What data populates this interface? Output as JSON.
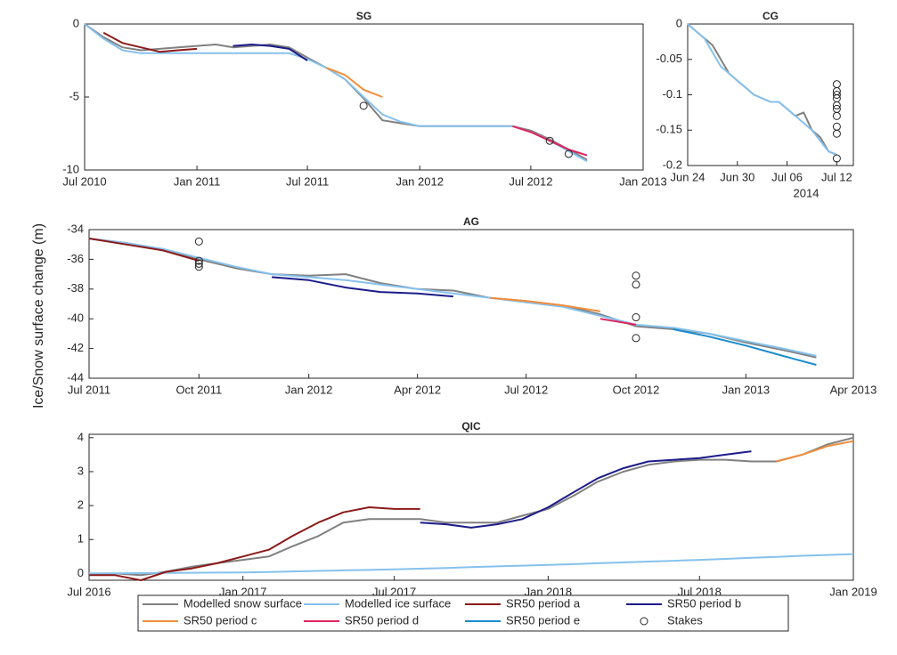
{
  "y_label": "Ice/Snow surface change (m)",
  "chart_data": [
    {
      "type": "line",
      "title": "SG",
      "x": [
        "2010-07",
        "2010-08",
        "2010-09",
        "2010-10",
        "2010-11",
        "2010-12",
        "2011-01",
        "2011-02",
        "2011-03",
        "2011-04",
        "2011-05",
        "2011-06",
        "2011-07",
        "2011-08",
        "2011-09",
        "2011-10",
        "2011-11",
        "2011-12",
        "2012-01",
        "2012-02",
        "2012-03",
        "2012-04",
        "2012-05",
        "2012-06",
        "2012-07",
        "2012-08",
        "2012-09",
        "2012-10",
        "2012-11",
        "2012-12",
        "2013-01"
      ],
      "xlim": [
        "2010-07",
        "2013-01"
      ],
      "xticks": [
        {
          "value": "2010-07",
          "label": "Jul 2010"
        },
        {
          "value": "2011-01",
          "label": "Jan 2011"
        },
        {
          "value": "2011-07",
          "label": "Jul 2011"
        },
        {
          "value": "2012-01",
          "label": "Jan 2012"
        },
        {
          "value": "2012-07",
          "label": "Jul 2012"
        },
        {
          "value": "2013-01",
          "label": "Jan 2013"
        }
      ],
      "ylim": [
        -10,
        0
      ],
      "yticks": [
        -10,
        -5,
        0
      ],
      "series": [
        {
          "name": "Modelled snow surface",
          "color": "#808080",
          "values": [
            0,
            -0.9,
            -1.6,
            -1.8,
            -1.7,
            -1.6,
            -1.5,
            -1.4,
            -1.6,
            -1.5,
            -1.4,
            -1.6,
            -2.3,
            -3.0,
            -3.8,
            -5.1,
            -6.6,
            -6.8,
            -7,
            -7,
            -7,
            -7,
            -7,
            -7,
            -7.3,
            -7.9,
            -8.6,
            -9.3,
            null,
            null,
            null
          ]
        },
        {
          "name": "Modelled ice surface",
          "color": "#86c1ec",
          "values": [
            0,
            -1.0,
            -1.8,
            -2,
            -2,
            -2,
            -2,
            -2,
            -2,
            -2,
            -2,
            -2,
            -2.4,
            -3.0,
            -3.8,
            -5.0,
            -6.2,
            -6.7,
            -7,
            -7,
            -7,
            -7,
            -7,
            -7,
            -7.4,
            -8.0,
            -8.7,
            -9.4,
            null,
            null,
            null
          ]
        },
        {
          "name": "SR50 period a",
          "color": "#8b1a1a",
          "values": [
            null,
            -0.6,
            -1.3,
            -1.6,
            -1.9,
            -1.8,
            -1.7,
            null,
            null,
            null,
            null,
            null,
            null,
            null,
            null,
            null,
            null,
            null,
            null,
            null,
            null,
            null,
            null,
            null,
            null,
            null,
            null,
            null,
            null,
            null,
            null
          ]
        },
        {
          "name": "SR50 period b",
          "color": "#1c1c8a",
          "values": [
            null,
            null,
            null,
            null,
            null,
            null,
            null,
            null,
            -1.5,
            -1.4,
            -1.5,
            -1.7,
            -2.5,
            null,
            null,
            null,
            null,
            null,
            null,
            null,
            null,
            null,
            null,
            null,
            null,
            null,
            null,
            null,
            null,
            null,
            null
          ]
        },
        {
          "name": "SR50 period c",
          "color": "#f28e3c",
          "values": [
            null,
            null,
            null,
            null,
            null,
            null,
            null,
            null,
            null,
            null,
            null,
            null,
            null,
            -3.0,
            -3.5,
            -4.5,
            -5.0,
            null,
            null,
            null,
            null,
            null,
            null,
            null,
            null,
            null,
            null,
            null,
            null,
            null,
            null
          ]
        },
        {
          "name": "SR50 period d",
          "color": "#e0245e",
          "values": [
            null,
            null,
            null,
            null,
            null,
            null,
            null,
            null,
            null,
            null,
            null,
            null,
            null,
            null,
            null,
            null,
            null,
            null,
            null,
            null,
            null,
            null,
            null,
            -7.0,
            -7.4,
            -8.0,
            -8.6,
            -9.0,
            null,
            null,
            null
          ]
        },
        {
          "name": "Stakes",
          "color": "#262626",
          "x": [
            "2011-10",
            "2012-08",
            "2012-09"
          ],
          "values": [
            -5.6,
            -8.0,
            -8.9
          ]
        }
      ]
    },
    {
      "type": "line",
      "title": "CG",
      "x_label": "2014",
      "x": [
        "2014-06-24",
        "2014-06-25",
        "2014-06-26",
        "2014-06-27",
        "2014-06-28",
        "2014-06-29",
        "2014-06-30",
        "2014-07-01",
        "2014-07-02",
        "2014-07-03",
        "2014-07-04",
        "2014-07-05",
        "2014-07-06",
        "2014-07-07",
        "2014-07-08",
        "2014-07-09",
        "2014-07-10",
        "2014-07-11",
        "2014-07-12"
      ],
      "xlim": [
        "2014-06-24",
        "2014-07-14"
      ],
      "xticks": [
        {
          "value": "2014-06-24",
          "label": "Jun 24"
        },
        {
          "value": "2014-06-30",
          "label": "Jun 30"
        },
        {
          "value": "2014-07-06",
          "label": "Jul 06"
        },
        {
          "value": "2014-07-12",
          "label": "Jul 12"
        }
      ],
      "ylim": [
        -0.2,
        0
      ],
      "yticks": [
        -0.2,
        -0.15,
        -0.1,
        -0.05,
        0
      ],
      "series": [
        {
          "name": "Modelled snow surface",
          "color": "#808080",
          "values": [
            0,
            -0.01,
            -0.02,
            -0.03,
            -0.05,
            -0.07,
            -0.08,
            -0.09,
            -0.1,
            -0.105,
            -0.11,
            -0.11,
            -0.12,
            -0.13,
            -0.125,
            -0.15,
            -0.16,
            -0.18,
            -0.185
          ]
        },
        {
          "name": "Modelled ice surface",
          "color": "#86c1ec",
          "values": [
            0,
            -0.01,
            -0.02,
            -0.04,
            -0.06,
            -0.07,
            -0.08,
            -0.09,
            -0.1,
            -0.105,
            -0.11,
            -0.11,
            -0.12,
            -0.13,
            -0.14,
            -0.15,
            -0.165,
            -0.18,
            -0.185
          ]
        },
        {
          "name": "Stakes",
          "color": "#262626",
          "x": [
            "2014-07-12",
            "2014-07-12",
            "2014-07-12",
            "2014-07-12",
            "2014-07-12",
            "2014-07-12",
            "2014-07-12",
            "2014-07-12",
            "2014-07-12",
            "2014-07-12"
          ],
          "values": [
            -0.085,
            -0.095,
            -0.1,
            -0.105,
            -0.115,
            -0.12,
            -0.13,
            -0.145,
            -0.155,
            -0.19
          ]
        }
      ]
    },
    {
      "type": "line",
      "title": "AG",
      "x": [
        "2011-07",
        "2011-08",
        "2011-09",
        "2011-10",
        "2011-11",
        "2011-12",
        "2012-01",
        "2012-02",
        "2012-03",
        "2012-04",
        "2012-05",
        "2012-06",
        "2012-07",
        "2012-08",
        "2012-09",
        "2012-10",
        "2012-11",
        "2012-12",
        "2013-01",
        "2013-02",
        "2013-03"
      ],
      "xlim": [
        "2011-07",
        "2013-04"
      ],
      "xticks": [
        {
          "value": "2011-07",
          "label": "Jul 2011"
        },
        {
          "value": "2011-10",
          "label": "Oct 2011"
        },
        {
          "value": "2012-01",
          "label": "Jan 2012"
        },
        {
          "value": "2012-04",
          "label": "Apr 2012"
        },
        {
          "value": "2012-07",
          "label": "Jul 2012"
        },
        {
          "value": "2012-10",
          "label": "Oct 2012"
        },
        {
          "value": "2013-01",
          "label": "Jan 2013"
        },
        {
          "value": "2013-04",
          "label": "Apr 2013"
        }
      ],
      "ylim": [
        -44,
        -34
      ],
      "yticks": [
        -44,
        -42,
        -40,
        -38,
        -36,
        -34
      ],
      "series": [
        {
          "name": "Modelled snow surface",
          "color": "#808080",
          "values": [
            -34.6,
            -34.9,
            -35.4,
            -36.0,
            -36.6,
            -37.0,
            -37.1,
            -37.0,
            -37.6,
            -38.0,
            -38.1,
            -38.6,
            -38.8,
            -39.1,
            -39.7,
            -40.5,
            -40.7,
            -41.0,
            -41.6,
            -42.1,
            -42.6
          ]
        },
        {
          "name": "Modelled ice surface",
          "color": "#86c1ec",
          "values": [
            -34.6,
            -34.9,
            -35.3,
            -35.9,
            -36.5,
            -37.0,
            -37.2,
            -37.4,
            -37.7,
            -38.0,
            -38.3,
            -38.6,
            -38.9,
            -39.2,
            -39.8,
            -40.4,
            -40.6,
            -41.0,
            -41.5,
            -42.0,
            -42.5
          ]
        },
        {
          "name": "SR50 period a",
          "color": "#8b1a1a",
          "values": [
            -34.6,
            -35.0,
            -35.4,
            -36.1,
            null,
            null,
            null,
            null,
            null,
            null,
            null,
            null,
            null,
            null,
            null,
            null,
            null,
            null,
            null,
            null,
            null
          ]
        },
        {
          "name": "SR50 period b",
          "color": "#1c1c8a",
          "values": [
            null,
            null,
            null,
            null,
            null,
            -37.2,
            -37.4,
            -37.9,
            -38.2,
            -38.3,
            -38.5,
            null,
            null,
            null,
            null,
            null,
            null,
            null,
            null,
            null,
            null
          ]
        },
        {
          "name": "SR50 period c",
          "color": "#f28e3c",
          "values": [
            null,
            null,
            null,
            null,
            null,
            null,
            null,
            null,
            null,
            null,
            null,
            -38.6,
            -38.8,
            -39.1,
            -39.5,
            null,
            null,
            null,
            null,
            null,
            null
          ]
        },
        {
          "name": "SR50 period d",
          "color": "#e0245e",
          "values": [
            null,
            null,
            null,
            null,
            null,
            null,
            null,
            null,
            null,
            null,
            null,
            null,
            null,
            null,
            -40.0,
            -40.4,
            null,
            null,
            null,
            null,
            null
          ]
        },
        {
          "name": "SR50 period e",
          "color": "#1a8ccc",
          "values": [
            null,
            null,
            null,
            null,
            null,
            null,
            null,
            null,
            null,
            null,
            null,
            null,
            null,
            null,
            null,
            null,
            -40.7,
            -41.2,
            -41.8,
            -42.5,
            -43.1
          ]
        },
        {
          "name": "Stakes",
          "color": "#262626",
          "x": [
            "2011-10",
            "2011-10",
            "2011-10",
            "2011-10",
            "2012-10",
            "2012-10",
            "2012-10",
            "2012-10"
          ],
          "values": [
            -34.8,
            -36.1,
            -36.3,
            -36.5,
            -37.1,
            -37.7,
            -39.9,
            -41.3
          ]
        }
      ]
    },
    {
      "type": "line",
      "title": "QIC",
      "x": [
        "2016-07",
        "2016-08",
        "2016-09",
        "2016-10",
        "2016-11",
        "2016-12",
        "2017-01",
        "2017-02",
        "2017-03",
        "2017-04",
        "2017-05",
        "2017-06",
        "2017-07",
        "2017-08",
        "2017-09",
        "2017-10",
        "2017-11",
        "2017-12",
        "2018-01",
        "2018-02",
        "2018-03",
        "2018-04",
        "2018-05",
        "2018-06",
        "2018-07",
        "2018-08",
        "2018-09",
        "2018-10",
        "2018-11",
        "2018-12",
        "2019-01"
      ],
      "xlim": [
        "2016-07",
        "2019-01"
      ],
      "xticks": [
        {
          "value": "2016-07",
          "label": "Jul 2016"
        },
        {
          "value": "2017-01",
          "label": "Jan 2017"
        },
        {
          "value": "2017-07",
          "label": "Jul 2017"
        },
        {
          "value": "2018-01",
          "label": "Jan 2018"
        },
        {
          "value": "2018-07",
          "label": "Jul 2018"
        },
        {
          "value": "2019-01",
          "label": "Jan 2019"
        }
      ],
      "ylim": [
        -0.2,
        4.1
      ],
      "yticks": [
        0,
        1,
        2,
        3,
        4
      ],
      "series": [
        {
          "name": "Modelled snow surface",
          "color": "#808080",
          "values": [
            0,
            0,
            -0.05,
            0.05,
            0.2,
            0.3,
            0.4,
            0.5,
            0.8,
            1.1,
            1.5,
            1.6,
            1.6,
            1.6,
            1.5,
            1.5,
            1.5,
            1.7,
            1.9,
            2.3,
            2.7,
            3.0,
            3.2,
            3.3,
            3.35,
            3.35,
            3.3,
            3.3,
            3.5,
            3.8,
            4.0
          ]
        },
        {
          "name": "Modelled ice surface",
          "color": "#86c1ec",
          "values": [
            0,
            0.005,
            0.01,
            0.015,
            0.02,
            0.025,
            0.03,
            0.045,
            0.06,
            0.075,
            0.09,
            0.105,
            0.12,
            0.14,
            0.16,
            0.185,
            0.21,
            0.23,
            0.25,
            0.275,
            0.3,
            0.325,
            0.35,
            0.375,
            0.4,
            0.43,
            0.46,
            0.49,
            0.52,
            0.545,
            0.57
          ]
        },
        {
          "name": "SR50 period a",
          "color": "#8b1a1a",
          "values": [
            -0.05,
            -0.05,
            -0.2,
            0.05,
            0.15,
            0.3,
            0.5,
            0.7,
            1.1,
            1.5,
            1.8,
            1.95,
            1.9,
            1.9,
            null,
            null,
            null,
            null,
            null,
            null,
            null,
            null,
            null,
            null,
            null,
            null,
            null,
            null,
            null,
            null,
            null
          ]
        },
        {
          "name": "SR50 period b",
          "color": "#1c1c8a",
          "values": [
            null,
            null,
            null,
            null,
            null,
            null,
            null,
            null,
            null,
            null,
            null,
            null,
            null,
            1.5,
            1.45,
            1.35,
            1.45,
            1.6,
            1.95,
            2.4,
            2.8,
            3.1,
            3.3,
            3.35,
            3.4,
            3.5,
            3.6,
            null,
            null,
            null,
            null
          ]
        },
        {
          "name": "SR50 period c",
          "color": "#f28e3c",
          "values": [
            null,
            null,
            null,
            null,
            null,
            null,
            null,
            null,
            null,
            null,
            null,
            null,
            null,
            null,
            null,
            null,
            null,
            null,
            null,
            null,
            null,
            null,
            null,
            null,
            null,
            null,
            null,
            3.3,
            3.5,
            3.75,
            3.9
          ]
        }
      ]
    }
  ]
}
